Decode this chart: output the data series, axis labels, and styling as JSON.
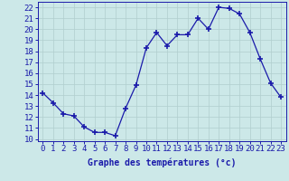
{
  "x": [
    0,
    1,
    2,
    3,
    4,
    5,
    6,
    7,
    8,
    9,
    10,
    11,
    12,
    13,
    14,
    15,
    16,
    17,
    18,
    19,
    20,
    21,
    22,
    23
  ],
  "y": [
    14.2,
    13.3,
    12.3,
    12.1,
    11.1,
    10.6,
    10.6,
    10.3,
    12.8,
    14.9,
    18.3,
    19.7,
    18.5,
    19.5,
    19.5,
    21.0,
    20.0,
    22.0,
    21.9,
    21.4,
    19.7,
    17.3,
    15.1,
    13.8
  ],
  "line_color": "#1a1aaa",
  "marker": "+",
  "marker_size": 4,
  "background_color": "#cce8e8",
  "grid_color": "#b0cece",
  "xlabel": "Graphe des températures (°c)",
  "ylabel_ticks": [
    10,
    11,
    12,
    13,
    14,
    15,
    16,
    17,
    18,
    19,
    20,
    21,
    22
  ],
  "xlim": [
    -0.5,
    23.5
  ],
  "ylim": [
    9.8,
    22.5
  ],
  "xlabel_fontsize": 7,
  "tick_fontsize": 6.5,
  "tick_color": "#1a1aaa",
  "label_color": "#1a1aaa",
  "spine_color": "#1a1aaa"
}
